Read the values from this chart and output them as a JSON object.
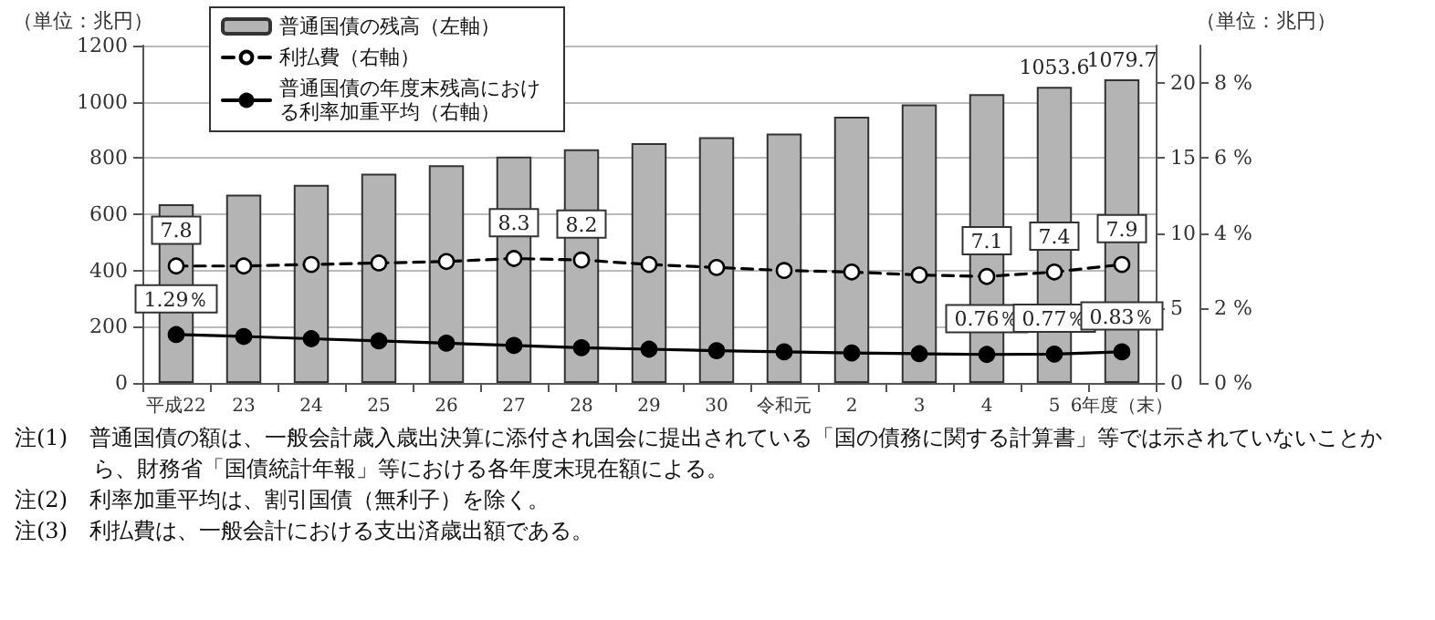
{
  "chart_data": {
    "type": "bar",
    "ylabel": "（単位：兆円）",
    "y2label": "（単位：兆円）",
    "categories": [
      "平成22",
      "23",
      "24",
      "25",
      "26",
      "27",
      "28",
      "29",
      "30",
      "令和元",
      "2",
      "3",
      "4",
      "5",
      "6年度（末）"
    ],
    "series": [
      {
        "name": "普通国債の残高（左軸）",
        "axis": "y",
        "color": "#b4b4b4",
        "values": [
          636,
          670,
          705,
          744,
          774,
          805,
          831,
          853,
          874,
          887,
          947,
          991,
          1027,
          1053.6,
          1079.7
        ],
        "value_labels": [
          null,
          null,
          null,
          null,
          null,
          null,
          null,
          null,
          null,
          null,
          null,
          null,
          null,
          "1053.6",
          "1079.7"
        ]
      },
      {
        "name": "利払費（右軸）",
        "type": "line",
        "axis": "y2",
        "color": "#000000",
        "line_style": "dashed",
        "marker": "circle",
        "values": [
          7.8,
          7.8,
          7.9,
          8.0,
          8.1,
          8.3,
          8.2,
          7.9,
          7.7,
          7.5,
          7.4,
          7.2,
          7.1,
          7.4,
          7.9
        ],
        "value_labels": [
          "7.8",
          null,
          null,
          null,
          null,
          "8.3",
          "8.2",
          null,
          null,
          null,
          null,
          null,
          "7.1",
          "7.4",
          "7.9"
        ]
      },
      {
        "name": "普通国債の年度末残高における利率加重平均（右軸）",
        "type": "line",
        "axis": "y3",
        "color": "#000000",
        "line_style": "solid",
        "marker": "circle",
        "values": [
          1.29,
          1.24,
          1.18,
          1.12,
          1.06,
          1.0,
          0.94,
          0.9,
          0.86,
          0.83,
          0.8,
          0.78,
          0.76,
          0.77,
          0.83
        ],
        "value_labels": [
          "1.29％",
          null,
          null,
          null,
          null,
          null,
          null,
          null,
          null,
          null,
          null,
          null,
          "0.76％",
          "0.77％",
          "0.83％"
        ]
      }
    ],
    "ylim": [
      0,
      1200
    ],
    "yticks": [
      0,
      200,
      400,
      600,
      800,
      1000,
      1200
    ],
    "y2lim": [
      0,
      22.5
    ],
    "y2ticks": [
      0,
      5,
      10,
      15,
      20
    ],
    "y3lim": [
      0,
      9
    ],
    "y3ticks": [
      {
        "value": 0,
        "label": "0 %"
      },
      {
        "value": 2,
        "label": "2 %"
      },
      {
        "value": 4,
        "label": "4 %"
      },
      {
        "value": 6,
        "label": "6 %"
      },
      {
        "value": 8,
        "label": "8 %"
      }
    ],
    "grid": "y",
    "legend": "top left",
    "annotations": [
      "注(1)　普通国債の額は、一般会計歳入歳出決算に添付され国会に提出されている「国の債務に関する計算書」等では示されていないことから、財務省「国債統計年報」等における各年度末現在額による。",
      "注(2)　利率加重平均は、割引国債（無利子）を除く。",
      "注(3)　利払費は、一般会計における支出済歳出額である。"
    ]
  }
}
